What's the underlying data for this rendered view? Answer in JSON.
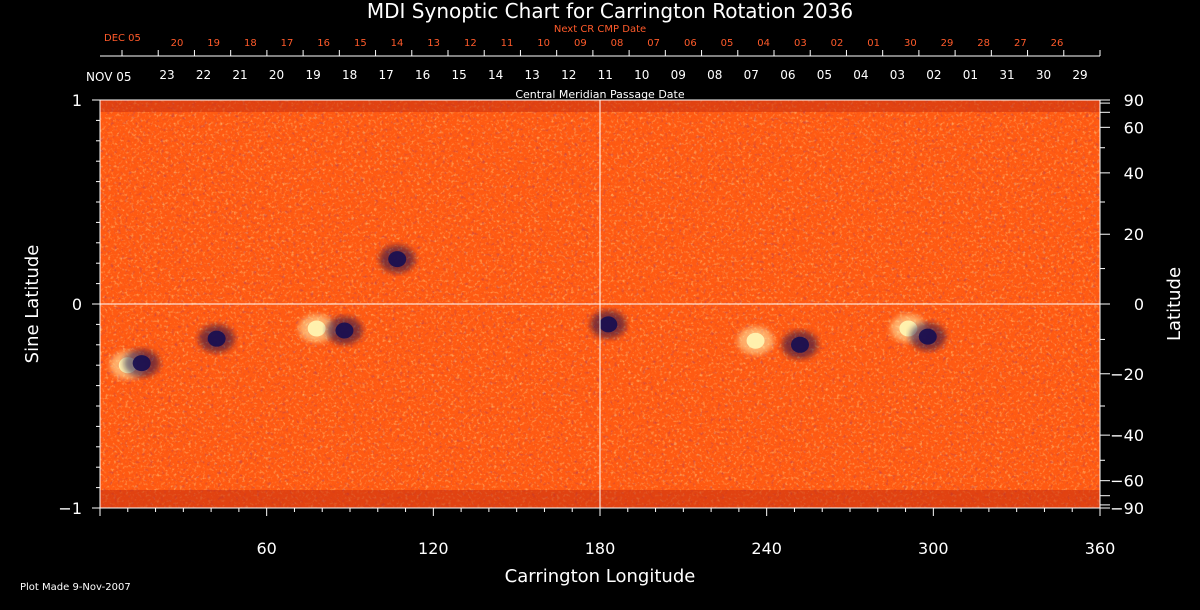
{
  "chart_data": {
    "type": "heatmap",
    "title": "MDI Synoptic Chart for Carrington Rotation 2036",
    "xlabel": "Carrington Longitude",
    "ylabel_left": "Sine Latitude",
    "ylabel_right": "Latitude",
    "xlim": [
      0,
      360
    ],
    "ylim_sine": [
      -1,
      1
    ],
    "x_ticks": [
      60,
      120,
      180,
      240,
      300,
      360
    ],
    "y_ticks_left": [
      "1",
      "0",
      "−1"
    ],
    "y_ticks_right": [
      "90",
      "60",
      "40",
      "20",
      "0",
      "−20",
      "−40",
      "−60",
      "−90"
    ],
    "y_ticks_right_values": [
      90,
      60,
      40,
      20,
      0,
      -20,
      -40,
      -60,
      -90
    ],
    "top_axis": {
      "label": "Central Meridian Passage Date",
      "start_label": "NOV 05",
      "dates": [
        "23",
        "22",
        "21",
        "20",
        "19",
        "18",
        "17",
        "16",
        "15",
        "14",
        "13",
        "12",
        "11",
        "10",
        "09",
        "08",
        "07",
        "06",
        "05",
        "04",
        "03",
        "02",
        "01",
        "31",
        "30",
        "29"
      ]
    },
    "next_axis": {
      "label": "Next CR CMP Date",
      "start_label": "DEC 05",
      "dates": [
        "20",
        "19",
        "18",
        "17",
        "16",
        "15",
        "14",
        "13",
        "12",
        "11",
        "10",
        "09",
        "08",
        "07",
        "06",
        "05",
        "04",
        "03",
        "02",
        "01",
        "30",
        "29",
        "28",
        "27",
        "26"
      ]
    },
    "features": [
      {
        "lon": 78,
        "sinlat": -0.12,
        "polarity": "positive"
      },
      {
        "lon": 88,
        "sinlat": -0.13,
        "polarity": "negative"
      },
      {
        "lon": 236,
        "sinlat": -0.18,
        "polarity": "positive"
      },
      {
        "lon": 252,
        "sinlat": -0.2,
        "polarity": "negative"
      },
      {
        "lon": 291,
        "sinlat": -0.12,
        "polarity": "positive"
      },
      {
        "lon": 298,
        "sinlat": -0.16,
        "polarity": "negative"
      },
      {
        "lon": 10,
        "sinlat": -0.3,
        "polarity": "positive"
      },
      {
        "lon": 15,
        "sinlat": -0.29,
        "polarity": "negative"
      },
      {
        "lon": 42,
        "sinlat": -0.17,
        "polarity": "negative"
      },
      {
        "lon": 107,
        "sinlat": 0.22,
        "polarity": "negative"
      },
      {
        "lon": 183,
        "sinlat": -0.1,
        "polarity": "negative"
      }
    ],
    "colors": {
      "background": "#000000",
      "map_base": "#ff5a12",
      "positive": "#fff3b0",
      "negative": "#1a1050",
      "axis": "#ffffff",
      "next_axis": "#ff5a2a"
    }
  },
  "footer": {
    "plot_made": "Plot Made  9-Nov-2007"
  }
}
